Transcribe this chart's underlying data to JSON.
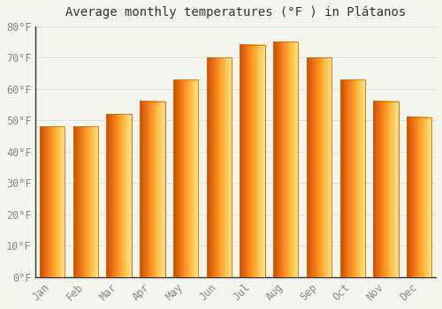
{
  "title": "Average monthly temperatures (°F ) in Plátanos",
  "months": [
    "Jan",
    "Feb",
    "Mar",
    "Apr",
    "May",
    "Jun",
    "Jul",
    "Aug",
    "Sep",
    "Oct",
    "Nov",
    "Dec"
  ],
  "values": [
    48,
    48,
    52,
    56,
    63,
    70,
    74,
    75,
    70,
    63,
    56,
    51
  ],
  "bar_color_main": "#FFD54F",
  "bar_color_left": "#FFA000",
  "bar_color_right": "#FFA000",
  "background_color": "#F5F5F0",
  "grid_color": "#dddddd",
  "axis_color": "#333333",
  "tick_color": "#888888",
  "ylim": [
    0,
    80
  ],
  "yticks": [
    0,
    10,
    20,
    30,
    40,
    50,
    60,
    70,
    80
  ],
  "title_fontsize": 10,
  "tick_fontsize": 8.5,
  "font_family": "monospace",
  "bar_width": 0.75
}
